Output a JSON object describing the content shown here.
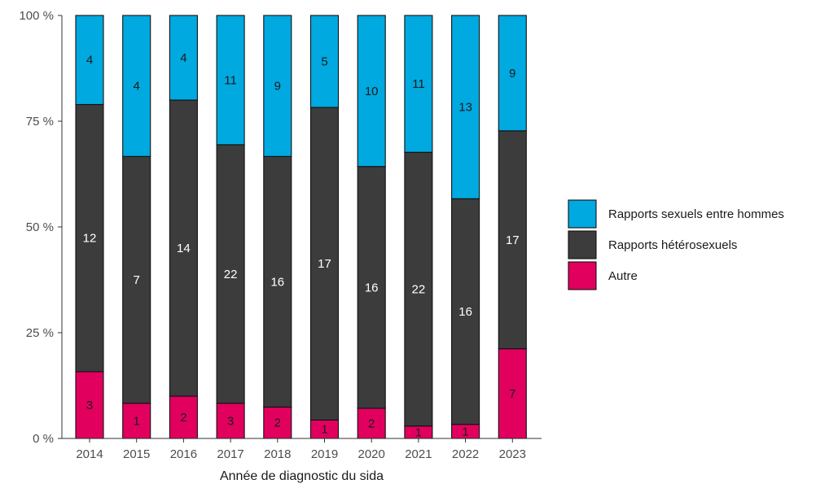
{
  "chart_data": {
    "type": "bar",
    "stacked": true,
    "normalized": true,
    "categories": [
      "2014",
      "2015",
      "2016",
      "2017",
      "2018",
      "2019",
      "2020",
      "2021",
      "2022",
      "2023"
    ],
    "series": [
      {
        "name": "Autre",
        "color": "#e2005f",
        "label_color": "#1a1a1a",
        "values": [
          3,
          1,
          2,
          3,
          2,
          1,
          2,
          1,
          1,
          7
        ]
      },
      {
        "name": "Rapports hétérosexuels",
        "color": "#3c3c3c",
        "label_color": "#ffffff",
        "values": [
          12,
          7,
          14,
          22,
          16,
          17,
          16,
          22,
          16,
          17
        ]
      },
      {
        "name": "Rapports sexuels entre hommes",
        "color": "#00a9e0",
        "label_color": "#1a1a1a",
        "values": [
          4,
          4,
          4,
          11,
          9,
          5,
          10,
          11,
          13,
          9
        ]
      }
    ],
    "legend_order": [
      "Rapports sexuels entre hommes",
      "Rapports hétérosexuels",
      "Autre"
    ],
    "title": "",
    "xlabel": "Année de diagnostic du sida",
    "ylabel": "",
    "ylim": [
      0,
      100
    ],
    "y_ticks": [
      "0 %",
      "25 %",
      "50 %",
      "75 %",
      "100 %"
    ],
    "legend_position": "right",
    "grid": false
  }
}
